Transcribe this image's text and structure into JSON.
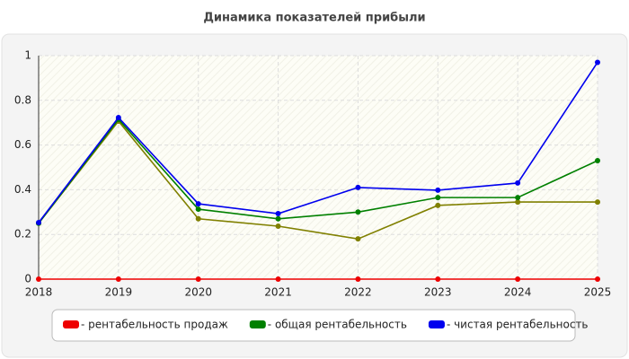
{
  "chart_data": {
    "type": "line",
    "title": "Динамика показателей прибыли",
    "x": [
      2018,
      2019,
      2020,
      2021,
      2022,
      2023,
      2024,
      2025
    ],
    "xlim": [
      2018,
      2025
    ],
    "xticks": [
      2018,
      2019,
      2020,
      2021,
      2022,
      2023,
      2024,
      2025
    ],
    "ylim": [
      0,
      1
    ],
    "yticks": [
      0,
      0.2,
      0.4,
      0.6,
      0.8,
      1
    ],
    "grid": true,
    "series": [
      {
        "color": "#808000",
        "values": [
          0.25,
          0.707,
          0.27,
          0.237,
          0.18,
          0.33,
          0.345,
          0.345
        ]
      },
      {
        "name": "- общая рентабельность",
        "color": "#008000",
        "values": [
          0.25,
          0.715,
          0.313,
          0.27,
          0.3,
          0.365,
          0.365,
          0.53
        ]
      },
      {
        "name": "- чистая рентабельность",
        "color": "#0000ee",
        "values": [
          0.253,
          0.723,
          0.337,
          0.293,
          0.41,
          0.398,
          0.43,
          0.97
        ]
      },
      {
        "name": "- рентабельность продаж",
        "color": "#ee0000",
        "values": [
          0,
          0,
          0,
          0,
          0,
          0,
          0,
          0
        ]
      }
    ],
    "legend_order": [
      3,
      1,
      2
    ]
  }
}
